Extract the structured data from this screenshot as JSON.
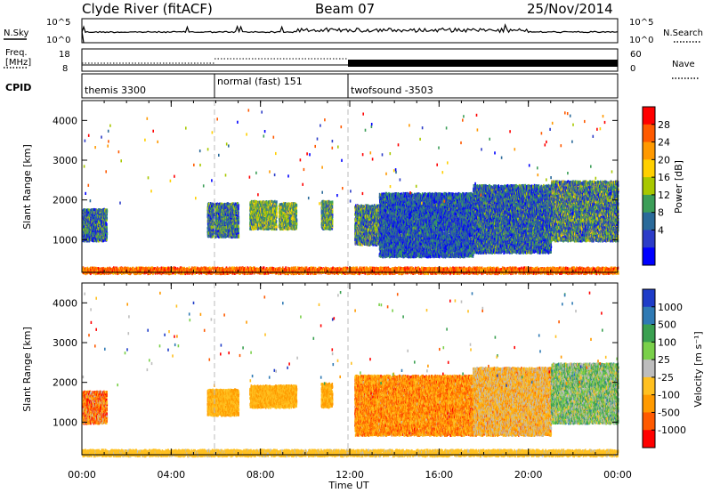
{
  "header": {
    "site": "Clyde River (fitACF)",
    "beam": "Beam 07",
    "date": "25/Nov/2014"
  },
  "noise_panel": {
    "left_label": "N.Sky",
    "right_label": "N.Search",
    "tick_top": "10^5",
    "tick_bottom": "10^0"
  },
  "freq_panel": {
    "left_label_1": "Freq.",
    "left_label_2": "[MHz]",
    "right_label": "Nave",
    "left_ticks": [
      "18",
      "8"
    ],
    "right_ticks": [
      "60",
      "0"
    ]
  },
  "cpid_panel": {
    "label": "CPID",
    "segments": [
      {
        "name": "themis 3300",
        "start": 0
      },
      {
        "name": "normal (fast) 151",
        "start": 6
      },
      {
        "name": "twofsound -3503",
        "start": 12
      }
    ]
  },
  "chart_data": [
    {
      "type": "heatmap",
      "title": "",
      "xlabel": "Time UT",
      "ylabel": "Slant Range [km]",
      "xlim": [
        0,
        24
      ],
      "ylim": [
        180,
        4500
      ],
      "x_ticks": [
        "00:00",
        "04:00",
        "08:00",
        "12:00",
        "16:00",
        "20:00",
        "00:00"
      ],
      "y_ticks": [
        1000,
        2000,
        3000,
        4000
      ],
      "colorbar": {
        "label": "Power [dB]",
        "ticks": [
          "28",
          "24",
          "20",
          "16",
          "12",
          "8",
          "4"
        ],
        "colors": [
          "#ff0000",
          "#ff5a00",
          "#ff9900",
          "#ffd000",
          "#a8c800",
          "#3c9e58",
          "#2a6a9a",
          "#2c3cc8",
          "#0000ff"
        ]
      },
      "regions": [
        {
          "t0": 0.0,
          "t1": 1.1,
          "r0": 1000,
          "r1": 1800,
          "cmin": 0.45,
          "cmax": 1.0
        },
        {
          "t0": 5.6,
          "t1": 7.0,
          "r0": 1100,
          "r1": 1950,
          "cmin": 0.45,
          "cmax": 0.95
        },
        {
          "t0": 7.5,
          "t1": 8.7,
          "r0": 1300,
          "r1": 2000,
          "cmin": 0.35,
          "cmax": 0.8
        },
        {
          "t0": 8.8,
          "t1": 9.6,
          "r0": 1300,
          "r1": 1950,
          "cmin": 0.35,
          "cmax": 0.8
        },
        {
          "t0": 10.7,
          "t1": 11.2,
          "r0": 1300,
          "r1": 2000,
          "cmin": 0.4,
          "cmax": 0.85
        },
        {
          "t0": 12.2,
          "t1": 13.3,
          "r0": 900,
          "r1": 1900,
          "cmin": 0.4,
          "cmax": 0.95
        },
        {
          "t0": 13.3,
          "t1": 17.5,
          "r0": 600,
          "r1": 2200,
          "cmin": 0.55,
          "cmax": 1.0
        },
        {
          "t0": 17.5,
          "t1": 21.0,
          "r0": 700,
          "r1": 2400,
          "cmin": 0.5,
          "cmax": 1.0
        },
        {
          "t0": 21.0,
          "t1": 24.0,
          "r0": 1000,
          "r1": 2500,
          "cmin": 0.4,
          "cmax": 0.95
        },
        {
          "t0": 0.0,
          "t1": 24.0,
          "r0": 180,
          "r1": 330,
          "cmin": 0.05,
          "cmax": 0.35
        }
      ]
    },
    {
      "type": "heatmap",
      "title": "",
      "xlabel": "Time UT",
      "ylabel": "Slant Range [km]",
      "xlim": [
        0,
        24
      ],
      "ylim": [
        180,
        4500
      ],
      "x_ticks": [
        "00:00",
        "04:00",
        "08:00",
        "12:00",
        "16:00",
        "20:00",
        "00:00"
      ],
      "y_ticks": [
        1000,
        2000,
        3000,
        4000
      ],
      "colorbar": {
        "label": "Velocity  [m s⁻¹]",
        "ticks": [
          "1000",
          "500",
          "100",
          "25",
          "-25",
          "-100",
          "-500",
          "-1000"
        ],
        "colors": [
          "#1e3cc8",
          "#2f7ab4",
          "#3aa050",
          "#7ad04a",
          "#bdbdbd",
          "#ffc020",
          "#ff9a00",
          "#ff5a00",
          "#ff0000"
        ]
      },
      "regions": [
        {
          "t0": 0.0,
          "t1": 1.1,
          "r0": 1000,
          "r1": 1800,
          "cmin": 0.5,
          "cmax": 1.0
        },
        {
          "t0": 5.6,
          "t1": 7.0,
          "r0": 1200,
          "r1": 1850,
          "cmin": 0.6,
          "cmax": 0.72
        },
        {
          "t0": 7.5,
          "t1": 9.6,
          "r0": 1400,
          "r1": 1950,
          "cmin": 0.6,
          "cmax": 0.72
        },
        {
          "t0": 10.7,
          "t1": 11.2,
          "r0": 1400,
          "r1": 2000,
          "cmin": 0.6,
          "cmax": 0.75
        },
        {
          "t0": 12.2,
          "t1": 17.5,
          "r0": 700,
          "r1": 2200,
          "cmin": 0.55,
          "cmax": 0.9
        },
        {
          "t0": 17.5,
          "t1": 21.0,
          "r0": 700,
          "r1": 2400,
          "cmin": 0.45,
          "cmax": 0.8
        },
        {
          "t0": 21.0,
          "t1": 24.0,
          "r0": 1000,
          "r1": 2500,
          "cmin": 0.2,
          "cmax": 0.6
        },
        {
          "t0": 0.0,
          "t1": 24.0,
          "r0": 180,
          "r1": 330,
          "cmin": 0.55,
          "cmax": 0.62
        }
      ]
    }
  ]
}
